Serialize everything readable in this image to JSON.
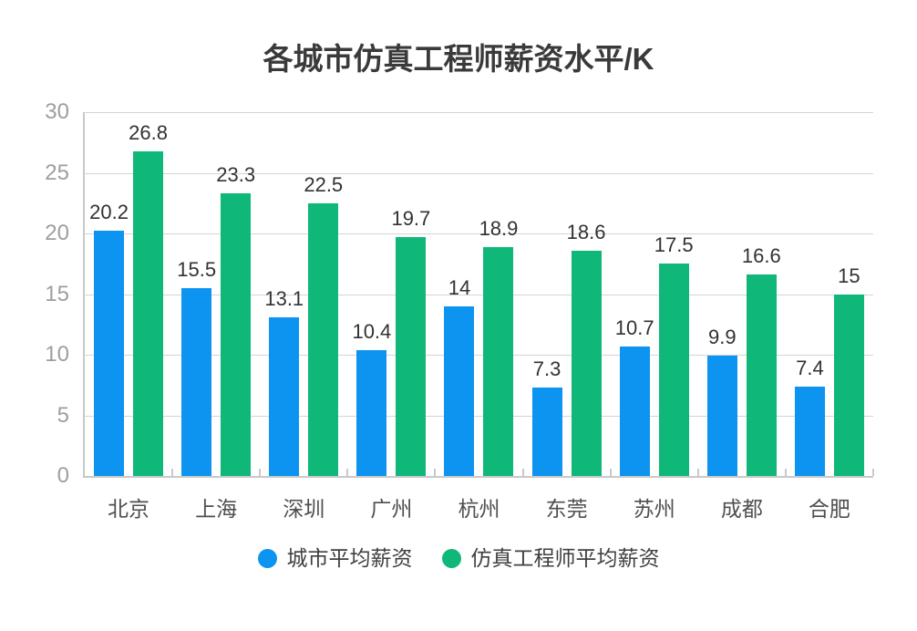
{
  "chart_data": {
    "type": "bar",
    "title": "各城市仿真工程师薪资水平/K",
    "categories": [
      "北京",
      "上海",
      "深圳",
      "广州",
      "杭州",
      "东莞",
      "苏州",
      "成都",
      "合肥"
    ],
    "series": [
      {
        "name": "城市平均薪资",
        "color": "#0C94F0",
        "values": [
          20.2,
          15.5,
          13.1,
          10.4,
          14,
          7.3,
          10.7,
          9.9,
          7.4
        ]
      },
      {
        "name": "仿真工程师平均薪资",
        "color": "#0FB878",
        "values": [
          26.8,
          23.3,
          22.5,
          19.7,
          18.9,
          18.6,
          17.5,
          16.6,
          15
        ]
      }
    ],
    "xlabel": "",
    "ylabel": "",
    "ylim": [
      0,
      30
    ],
    "yticks": [
      0,
      5,
      10,
      15,
      20,
      25,
      30
    ],
    "grid": true,
    "value_labels": true,
    "legend_position": "bottom"
  },
  "colors": {
    "background": "#ffffff",
    "title_text": "#3a3a3a",
    "axis_line": "#c9c9c9",
    "gridline": "#d4d4d4",
    "y_axis_label": "#9e9e9e",
    "x_axis_label": "#4f4f4f",
    "data_label": "#323232",
    "legend_text": "#404040",
    "series_city_avg": "#0C94F0",
    "series_sim_engineer_avg": "#0FB878"
  }
}
